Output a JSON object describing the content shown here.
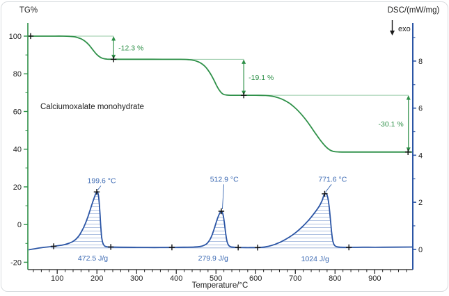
{
  "titles": {
    "tg_axis": "TG%",
    "dsc_axis": "DSC/(mW/mg)",
    "exo": "exo",
    "x_axis": "Temperature/°C"
  },
  "sample_label": "Calciumoxalate monohydrate",
  "colors": {
    "tg_green": "#2e9048",
    "ref_light_green": "#96caa6",
    "dsc_blue": "#2b55a5",
    "label_blue": "#3a68b2",
    "hatch_blue": "#b0c2e2",
    "integration_baseline_blue": "#8aa3cf",
    "axis_black": "#1a1a1a",
    "marker_black": "#111111",
    "text": "#222222",
    "border": "#d8dcdf"
  },
  "chart_data": {
    "type": "line",
    "title": "TG and DSC curves of calcium oxalate monohydrate",
    "xlabel": "Temperature/°C",
    "x_range": [
      26,
      996
    ],
    "x_major_ticks": [
      100,
      200,
      300,
      400,
      500,
      600,
      700,
      800,
      900
    ],
    "x_minor_step": 20,
    "tg_axis": {
      "label": "TG%",
      "range": [
        -23.9,
        107
      ],
      "major_ticks": [
        100,
        80,
        60,
        40,
        20,
        0,
        -20
      ],
      "minor_ticks": [
        90,
        70,
        50,
        30,
        10,
        -10
      ]
    },
    "dsc_axis": {
      "label": "DSC/(mW/mg)",
      "range": [
        -0.86,
        9.62
      ],
      "major_ticks": [
        8,
        6,
        4,
        2,
        0
      ],
      "minor_ticks": [
        9,
        7,
        5,
        3,
        1
      ]
    },
    "grid": false,
    "series": [
      {
        "name": "TG",
        "unit": "%",
        "color_key": "tg_green",
        "points": [
          [
            28,
            100
          ],
          [
            80,
            100
          ],
          [
            115,
            100
          ],
          [
            132,
            99.9
          ],
          [
            143,
            99.65
          ],
          [
            152,
            99.2
          ],
          [
            160,
            98.6
          ],
          [
            168,
            97.6
          ],
          [
            175,
            96.4
          ],
          [
            181,
            95.1
          ],
          [
            187,
            93.5
          ],
          [
            193,
            91.9
          ],
          [
            199,
            90.4
          ],
          [
            205,
            89.3
          ],
          [
            211,
            88.5
          ],
          [
            218,
            88.0
          ],
          [
            226,
            87.8
          ],
          [
            240,
            87.72
          ],
          [
            270,
            87.7
          ],
          [
            340,
            87.7
          ],
          [
            410,
            87.68
          ],
          [
            432,
            87.5
          ],
          [
            445,
            87.1
          ],
          [
            455,
            86.4
          ],
          [
            464,
            85.4
          ],
          [
            472,
            84.0
          ],
          [
            480,
            82.0
          ],
          [
            488,
            79.4
          ],
          [
            495,
            76.6
          ],
          [
            501,
            74.0
          ],
          [
            507,
            71.8
          ],
          [
            513,
            70.1
          ],
          [
            519,
            69.1
          ],
          [
            526,
            68.75
          ],
          [
            536,
            68.63
          ],
          [
            560,
            68.6
          ],
          [
            600,
            68.6
          ],
          [
            625,
            68.5
          ],
          [
            642,
            68.1
          ],
          [
            657,
            67.3
          ],
          [
            671,
            66.1
          ],
          [
            685,
            64.4
          ],
          [
            698,
            62.2
          ],
          [
            711,
            59.5
          ],
          [
            724,
            56.3
          ],
          [
            737,
            52.6
          ],
          [
            749,
            48.9
          ],
          [
            760,
            45.6
          ],
          [
            770,
            42.9
          ],
          [
            779,
            40.9
          ],
          [
            787,
            39.6
          ],
          [
            794,
            38.95
          ],
          [
            801,
            38.65
          ],
          [
            810,
            38.53
          ],
          [
            830,
            38.5
          ],
          [
            900,
            38.5
          ],
          [
            996,
            38.5
          ]
        ]
      },
      {
        "name": "DSC",
        "unit": "mW/mg",
        "color_key": "dsc_blue",
        "points": [
          [
            28,
            -0.02
          ],
          [
            45,
            0.03
          ],
          [
            60,
            0.07
          ],
          [
            75,
            0.1
          ],
          [
            91,
            0.13
          ],
          [
            105,
            0.16
          ],
          [
            118,
            0.2
          ],
          [
            128,
            0.25
          ],
          [
            138,
            0.32
          ],
          [
            147,
            0.43
          ],
          [
            155,
            0.58
          ],
          [
            162,
            0.78
          ],
          [
            169,
            1.02
          ],
          [
            176,
            1.32
          ],
          [
            182,
            1.62
          ],
          [
            188,
            1.94
          ],
          [
            193,
            2.18
          ],
          [
            197,
            2.36
          ],
          [
            200,
            2.45
          ],
          [
            202,
            2.42
          ],
          [
            204,
            2.28
          ],
          [
            206,
            1.95
          ],
          [
            208,
            1.45
          ],
          [
            210,
            0.92
          ],
          [
            212,
            0.52
          ],
          [
            215,
            0.27
          ],
          [
            219,
            0.15
          ],
          [
            225,
            0.11
          ],
          [
            235,
            0.1
          ],
          [
            260,
            0.09
          ],
          [
            300,
            0.085
          ],
          [
            345,
            0.08
          ],
          [
            389,
            0.085
          ],
          [
            420,
            0.09
          ],
          [
            445,
            0.1
          ],
          [
            460,
            0.12
          ],
          [
            470,
            0.17
          ],
          [
            478,
            0.26
          ],
          [
            485,
            0.42
          ],
          [
            491,
            0.65
          ],
          [
            497,
            0.95
          ],
          [
            502,
            1.22
          ],
          [
            507,
            1.45
          ],
          [
            511,
            1.58
          ],
          [
            513,
            1.62
          ],
          [
            516,
            1.57
          ],
          [
            519,
            1.38
          ],
          [
            522,
            1.02
          ],
          [
            525,
            0.62
          ],
          [
            528,
            0.33
          ],
          [
            532,
            0.17
          ],
          [
            537,
            0.11
          ],
          [
            545,
            0.09
          ],
          [
            556,
            0.08
          ],
          [
            575,
            0.075
          ],
          [
            590,
            0.075
          ],
          [
            605,
            0.075
          ],
          [
            618,
            0.09
          ],
          [
            632,
            0.13
          ],
          [
            648,
            0.21
          ],
          [
            665,
            0.33
          ],
          [
            682,
            0.49
          ],
          [
            700,
            0.7
          ],
          [
            717,
            0.95
          ],
          [
            733,
            1.23
          ],
          [
            747,
            1.52
          ],
          [
            759,
            1.8
          ],
          [
            767,
            2.05
          ],
          [
            772,
            2.3
          ],
          [
            776,
            2.38
          ],
          [
            779,
            2.34
          ],
          [
            782,
            2.18
          ],
          [
            785,
            1.85
          ],
          [
            788,
            1.35
          ],
          [
            791,
            0.8
          ],
          [
            794,
            0.4
          ],
          [
            798,
            0.19
          ],
          [
            803,
            0.12
          ],
          [
            812,
            0.095
          ],
          [
            835,
            0.085
          ],
          [
            870,
            0.09
          ],
          [
            920,
            0.09
          ],
          [
            996,
            0.1
          ]
        ]
      }
    ],
    "tg_markers": [
      [
        33,
        100
      ],
      [
        242,
        87.7
      ],
      [
        570,
        68.6
      ],
      [
        984,
        38.5
      ]
    ],
    "dsc_markers": [
      [
        91,
        0.13
      ],
      [
        199.6,
        2.44
      ],
      [
        235,
        0.1
      ],
      [
        389,
        0.085
      ],
      [
        513.5,
        1.62
      ],
      [
        556,
        0.08
      ],
      [
        605,
        0.075
      ],
      [
        774,
        2.36
      ],
      [
        835,
        0.085
      ]
    ],
    "mass_steps": [
      {
        "label": "-12.3 %",
        "value_from": 100,
        "value_to": 87.7,
        "arrow_t": 242,
        "ref_from_t": 32,
        "label_side": "right"
      },
      {
        "label": "-19.1 %",
        "value_from": 87.7,
        "value_to": 68.6,
        "arrow_t": 570,
        "ref_from_t": 242,
        "label_side": "right"
      },
      {
        "label": "-30.1 %",
        "value_from": 68.6,
        "value_to": 38.5,
        "arrow_t": 985,
        "ref_from_t": 570,
        "label_side": "left"
      }
    ],
    "peaks": [
      {
        "temp_label": "199.6 °C",
        "area_label": "472.5 J/g",
        "marker": [
          199.6,
          2.44
        ],
        "temp_label_pos": [
          212,
          2.82
        ],
        "area_label_pos": [
          190,
          -0.47
        ],
        "hatch_range": [
          95,
          230
        ]
      },
      {
        "temp_label": "512.9 °C",
        "area_label": "279.9 J/g",
        "marker": [
          513.5,
          1.62
        ],
        "temp_label_pos": [
          521,
          2.88
        ],
        "area_label_pos": [
          493,
          -0.47
        ],
        "hatch_range": [
          452,
          550
        ]
      },
      {
        "temp_label": "771.6 °C",
        "area_label": "1024 J/g",
        "marker": [
          774,
          2.36
        ],
        "temp_label_pos": [
          794,
          2.88
        ],
        "area_label_pos": [
          750,
          -0.5
        ],
        "hatch_range": [
          602,
          830
        ]
      }
    ],
    "integration_baseline": {
      "value": 0.06,
      "from_t": 85,
      "to_t": 840
    }
  }
}
